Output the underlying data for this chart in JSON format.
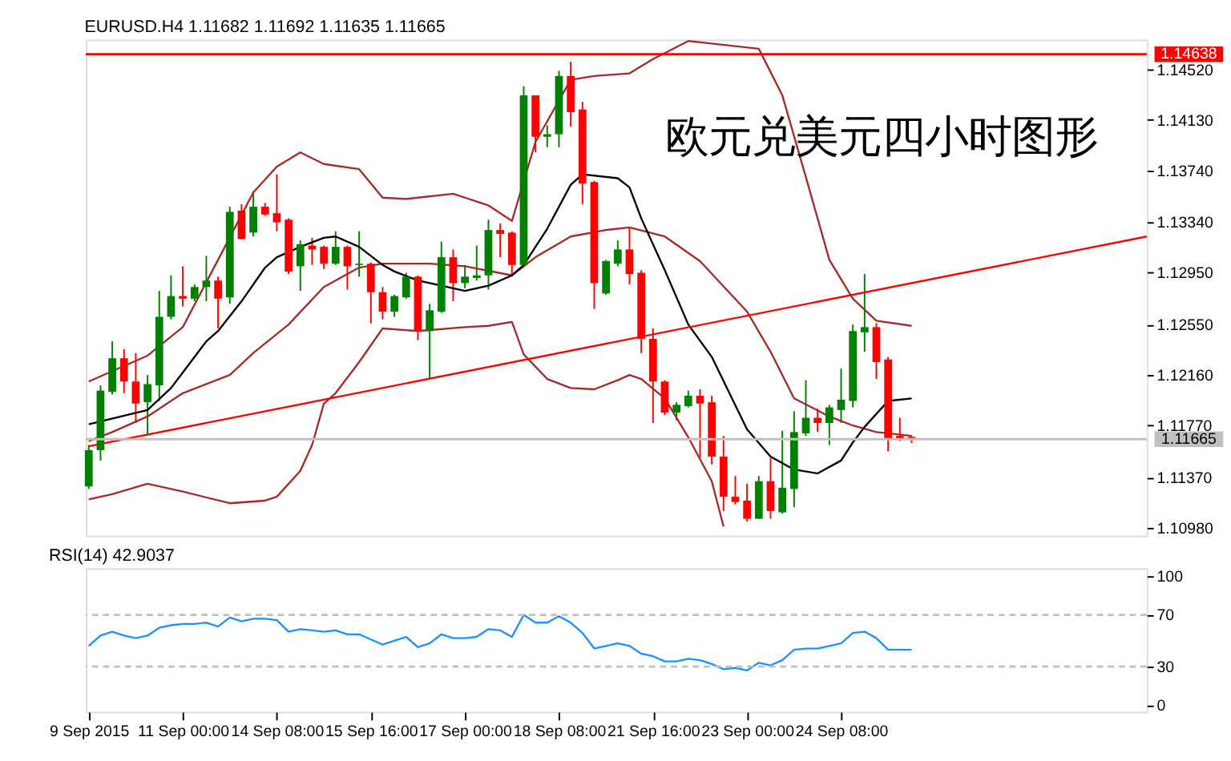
{
  "chart_data": [
    {
      "type": "candlestick",
      "title": "EURUSD.H4  1.11682 1.11692 1.11635 1.11665",
      "annotations": [
        "欧元兑美元四小时图形"
      ],
      "categories": [
        null,
        null,
        null,
        null,
        null,
        null,
        null,
        null,
        null,
        null,
        null,
        null,
        null,
        null,
        null,
        null,
        null,
        null,
        null,
        null,
        null,
        null,
        null,
        null,
        null,
        null,
        null,
        null,
        null,
        null,
        null,
        null,
        null,
        null,
        null,
        null,
        null,
        null,
        null,
        null,
        null,
        null,
        null,
        null,
        null,
        null,
        null,
        null,
        null,
        null,
        null,
        null,
        null,
        null,
        null,
        null,
        null,
        null,
        null,
        null,
        null,
        null,
        null,
        null,
        null,
        null,
        null,
        null,
        null,
        null,
        null,
        null,
        null,
        null,
        null,
        null,
        null,
        null,
        null,
        null,
        null,
        null,
        null,
        null,
        null,
        null,
        null,
        null,
        null,
        null,
        null
      ],
      "ohlc": [
        [
          1.113,
          1.1162,
          1.1128,
          1.1158
        ],
        [
          1.1158,
          1.1208,
          1.115,
          1.1204
        ],
        [
          1.1203,
          1.1242,
          1.1201,
          1.1229
        ],
        [
          1.1229,
          1.1236,
          1.1202,
          1.1211
        ],
        [
          1.1211,
          1.1233,
          1.1179,
          1.1194
        ],
        [
          1.1195,
          1.1216,
          1.117,
          1.1209
        ],
        [
          1.1208,
          1.1281,
          1.1196,
          1.1261
        ],
        [
          1.1261,
          1.1293,
          1.1259,
          1.1277
        ],
        [
          1.1277,
          1.13,
          1.1269,
          1.1275
        ],
        [
          1.1275,
          1.1286,
          1.1273,
          1.1284
        ],
        [
          1.1284,
          1.1308,
          1.1273,
          1.1289
        ],
        [
          1.1289,
          1.1292,
          1.1252,
          1.1275
        ],
        [
          1.1276,
          1.1346,
          1.1271,
          1.1342
        ],
        [
          1.1343,
          1.1348,
          1.1321,
          1.1321
        ],
        [
          1.1326,
          1.1358,
          1.1323,
          1.1346
        ],
        [
          1.1346,
          1.1349,
          1.1339,
          1.134
        ],
        [
          1.1341,
          1.1371,
          1.1327,
          1.1334
        ],
        [
          1.1336,
          1.1337,
          1.1294,
          1.1296
        ],
        [
          1.13,
          1.132,
          1.1281,
          1.1317
        ],
        [
          1.1316,
          1.1322,
          1.1301,
          1.1313
        ],
        [
          1.1315,
          1.1316,
          1.1298,
          1.1302
        ],
        [
          1.1302,
          1.1327,
          1.1301,
          1.1315
        ],
        [
          1.1315,
          1.1316,
          1.1282,
          1.13
        ],
        [
          1.1301,
          1.1327,
          1.1292,
          1.1302
        ],
        [
          1.1302,
          1.1303,
          1.1256,
          1.128
        ],
        [
          1.128,
          1.1284,
          1.1259,
          1.1265
        ],
        [
          1.1265,
          1.1278,
          1.1261,
          1.1277
        ],
        [
          1.1276,
          1.1295,
          1.1275,
          1.1292
        ],
        [
          1.1292,
          1.1293,
          1.1243,
          1.125
        ],
        [
          1.125,
          1.1271,
          1.1213,
          1.1266
        ],
        [
          1.1265,
          1.1319,
          1.1264,
          1.1307
        ],
        [
          1.1307,
          1.1313,
          1.1273,
          1.1287
        ],
        [
          1.1287,
          1.1301,
          1.1283,
          1.1292
        ],
        [
          1.1291,
          1.1316,
          1.1289,
          1.1293
        ],
        [
          1.1293,
          1.1336,
          1.1282,
          1.1328
        ],
        [
          1.1328,
          1.1333,
          1.1307,
          1.1325
        ],
        [
          1.1326,
          1.1327,
          1.1292,
          1.1301
        ],
        [
          1.1301,
          1.1439,
          1.13,
          1.1432
        ],
        [
          1.1432,
          1.1432,
          1.1388,
          1.14
        ],
        [
          1.14,
          1.1409,
          1.1392,
          1.1402
        ],
        [
          1.1402,
          1.1451,
          1.1392,
          1.1447
        ],
        [
          1.1447,
          1.1458,
          1.1408,
          1.1419
        ],
        [
          1.1421,
          1.1427,
          1.1348,
          1.1364
        ],
        [
          1.1365,
          1.1366,
          1.1267,
          1.1287
        ],
        [
          1.1279,
          1.1305,
          1.1278,
          1.1304
        ],
        [
          1.1302,
          1.132,
          1.13,
          1.1313
        ],
        [
          1.1313,
          1.133,
          1.1286,
          1.1294
        ],
        [
          1.1295,
          1.1297,
          1.1233,
          1.1244
        ],
        [
          1.1244,
          1.1252,
          1.1179,
          1.1211
        ],
        [
          1.1211,
          1.1212,
          1.1185,
          1.1187
        ],
        [
          1.1187,
          1.1195,
          1.1181,
          1.1193
        ],
        [
          1.1192,
          1.1204,
          1.1191,
          1.12
        ],
        [
          1.12,
          1.1205,
          1.1152,
          1.1194
        ],
        [
          1.1195,
          1.12,
          1.1147,
          1.1153
        ],
        [
          1.1153,
          1.1169,
          1.1111,
          1.1122
        ],
        [
          1.1122,
          1.1138,
          1.1116,
          1.1118
        ],
        [
          1.1119,
          1.1132,
          1.1103,
          1.1105
        ],
        [
          1.1105,
          1.1138,
          1.1105,
          1.1134
        ],
        [
          1.1134,
          1.1152,
          1.1105,
          1.1111
        ],
        [
          1.111,
          1.1173,
          1.1109,
          1.1129
        ],
        [
          1.1128,
          1.1188,
          1.1114,
          1.1172
        ],
        [
          1.1171,
          1.1212,
          1.1169,
          1.1183
        ],
        [
          1.1183,
          1.119,
          1.1172,
          1.1179
        ],
        [
          1.1179,
          1.1193,
          1.1162,
          1.1191
        ],
        [
          1.1189,
          1.1221,
          1.1179,
          1.1197
        ],
        [
          1.1196,
          1.1255,
          1.1191,
          1.125
        ],
        [
          1.1249,
          1.1294,
          1.1234,
          1.1253
        ],
        [
          1.1253,
          1.1256,
          1.1213,
          1.1226
        ],
        [
          1.1228,
          1.123,
          1.1157,
          1.1167
        ],
        [
          1.1169,
          1.1183,
          1.1165,
          1.1167
        ],
        [
          1.11682,
          1.11692,
          1.11635,
          1.11665
        ],
        null,
        null,
        null,
        null,
        null,
        null,
        null,
        null,
        null,
        null,
        null,
        null,
        null,
        null,
        null,
        null,
        null,
        null,
        null,
        null
      ],
      "colors": [
        "#008000",
        "#008000",
        "#008000",
        "#ff0000",
        "#ff0000",
        "#008000",
        "#008000",
        "#008000",
        "#ff0000",
        "#008000",
        "#008000",
        "#ff0000",
        "#008000",
        "#ff0000",
        "#008000",
        "#ff0000",
        "#ff0000",
        "#ff0000",
        "#008000",
        "#ff0000",
        "#ff0000",
        "#008000",
        "#ff0000",
        "#008000",
        "#ff0000",
        "#ff0000",
        "#008000",
        "#008000",
        "#ff0000",
        "#008000",
        "#008000",
        "#ff0000",
        "#008000",
        "#008000",
        "#008000",
        "#ff0000",
        "#ff0000",
        "#008000",
        "#ff0000",
        "#008000",
        "#008000",
        "#ff0000",
        "#ff0000",
        "#ff0000",
        "#008000",
        "#008000",
        "#ff0000",
        "#ff0000",
        "#ff0000",
        "#ff0000",
        "#008000",
        "#008000",
        "#ff0000",
        "#ff0000",
        "#ff0000",
        "#ff0000",
        "#ff0000",
        "#008000",
        "#ff0000",
        "#008000",
        "#008000",
        "#008000",
        "#ff0000",
        "#008000",
        "#008000",
        "#008000",
        "#008000",
        "#ff0000",
        "#ff0000",
        "#ff0000",
        "#ff0000",
        null,
        null,
        null,
        null,
        null,
        null,
        null,
        null,
        null,
        null,
        null,
        null,
        null,
        null,
        null,
        null,
        null,
        null,
        null,
        null
      ],
      "series": [
        {
          "type": "line",
          "color": "#a52a2a",
          "values": [
            1.1211,
            null,
            null,
            null,
            null,
            1.1231,
            null,
            null,
            1.1253,
            null,
            null,
            1.1305,
            null,
            null,
            1.1357,
            null,
            1.1377,
            null,
            1.1388,
            null,
            1.1379,
            null,
            null,
            1.1375,
            null,
            1.1353,
            null,
            1.1352,
            null,
            null,
            null,
            1.1356,
            1.1353,
            null,
            1.1347,
            null,
            1.1335,
            null,
            1.1396,
            null,
            1.1428,
            1.1444,
            null,
            1.1447,
            null,
            null,
            1.1449,
            null,
            1.146,
            null,
            null,
            1.1474,
            null,
            null,
            null,
            null,
            null,
            1.1468,
            null,
            1.1432,
            null,
            1.1369,
            null,
            1.1305,
            null,
            1.1275,
            null,
            1.1258,
            null,
            null,
            1.1254,
            null,
            null,
            null,
            null,
            null,
            null,
            null,
            null,
            null,
            null,
            null,
            null,
            null,
            null,
            null,
            null,
            null,
            null,
            null,
            null
          ]
        },
        {
          "type": "line",
          "color": "#a52a2a",
          "values": [
            1.1165,
            null,
            1.1172,
            null,
            null,
            1.1184,
            null,
            null,
            1.1202,
            null,
            null,
            null,
            1.1216,
            null,
            1.1233,
            null,
            null,
            1.1255,
            null,
            null,
            1.1284,
            null,
            null,
            1.1299,
            null,
            1.1302,
            null,
            null,
            null,
            1.1302,
            null,
            null,
            1.13,
            null,
            null,
            null,
            1.1293,
            null,
            1.1307,
            null,
            null,
            1.1323,
            null,
            null,
            1.1328,
            null,
            1.133,
            null,
            null,
            1.1323,
            null,
            null,
            1.1304,
            null,
            null,
            null,
            1.1265,
            null,
            1.1234,
            null,
            1.1198,
            null,
            null,
            1.1184,
            null,
            1.1177,
            null,
            1.1172,
            null,
            null,
            1.1169,
            null,
            null,
            null,
            null,
            null,
            null,
            null,
            null,
            null,
            null,
            null,
            null,
            null,
            null,
            null,
            null,
            null,
            null,
            null,
            null
          ]
        },
        {
          "type": "line",
          "color": "#a52a2a",
          "values": [
            1.112,
            null,
            1.1124,
            null,
            null,
            1.1132,
            null,
            null,
            1.1126,
            null,
            null,
            null,
            1.1117,
            null,
            null,
            1.1119,
            1.1122,
            null,
            1.1142,
            1.1162,
            1.1194,
            1.1202,
            null,
            1.1226,
            null,
            1.1252,
            null,
            null,
            1.125,
            null,
            null,
            null,
            1.1253,
            null,
            1.1254,
            null,
            1.1257,
            1.1232,
            null,
            1.1213,
            null,
            1.1206,
            null,
            1.1205,
            null,
            1.1212,
            1.1216,
            1.1213,
            null,
            1.1198,
            null,
            1.1168,
            null,
            1.1134,
            1.1099,
            null,
            null,
            null,
            null,
            null,
            null,
            null,
            null,
            null,
            null,
            null,
            null,
            null,
            null,
            null,
            null,
            null,
            null,
            null,
            null,
            null,
            null,
            null,
            null,
            null,
            null,
            null,
            null,
            null,
            null,
            null,
            null,
            null,
            null,
            null,
            null
          ]
        },
        {
          "type": "line",
          "color": "#000000",
          "values": [
            1.1178,
            null,
            null,
            null,
            null,
            1.1189,
            null,
            1.1206,
            1.1218,
            null,
            1.1242,
            1.125,
            null,
            1.1273,
            null,
            1.1299,
            1.1307,
            null,
            1.1315,
            null,
            1.1322,
            1.1323,
            null,
            1.1315,
            null,
            1.1301,
            1.1296,
            null,
            1.1289,
            null,
            1.1285,
            null,
            1.1281,
            null,
            1.1285,
            null,
            1.1293,
            1.1301,
            null,
            1.1329,
            null,
            1.1363,
            1.1371,
            null,
            null,
            1.1368,
            1.1361,
            1.1337,
            null,
            1.1297,
            null,
            1.1255,
            null,
            1.123,
            null,
            null,
            1.1174,
            null,
            1.1153,
            null,
            1.1143,
            null,
            1.114,
            null,
            1.115,
            1.1164,
            1.1176,
            null,
            1.1196,
            null,
            1.1198,
            null,
            null,
            null,
            null,
            null,
            null,
            null,
            null,
            null,
            null,
            null,
            null,
            null,
            null,
            null,
            null,
            null,
            null,
            null,
            null
          ]
        },
        {
          "type": "line",
          "color": "#ff0000",
          "values": [
            1.1161,
            null,
            null,
            null,
            null,
            null,
            null,
            null,
            null,
            null,
            null,
            null,
            null,
            null,
            null,
            null,
            null,
            null,
            null,
            null,
            null,
            null,
            null,
            null,
            null,
            null,
            null,
            null,
            null,
            null,
            null,
            null,
            null,
            null,
            null,
            null,
            null,
            null,
            null,
            null,
            null,
            null,
            null,
            null,
            null,
            null,
            null,
            null,
            null,
            null,
            null,
            null,
            null,
            null,
            null,
            null,
            null,
            null,
            null,
            null,
            null,
            null,
            null,
            null,
            null,
            null,
            null,
            null,
            null,
            null,
            null,
            null,
            null,
            null,
            null,
            null,
            null,
            null,
            null,
            null,
            null,
            null,
            null,
            null,
            null,
            null,
            null,
            null,
            null,
            null,
            1.1323
          ]
        }
      ],
      "ylim": [
        1.1092,
        1.1475
      ],
      "yticks": [
        {
          "value": 1.1098,
          "label": "1.10980"
        },
        {
          "value": 1.1137,
          "label": "1.11370"
        },
        {
          "value": 1.1177,
          "label": "1.11770"
        },
        {
          "value": 1.1216,
          "label": "1.12160"
        },
        {
          "value": 1.1255,
          "label": "1.12550"
        },
        {
          "value": 1.1295,
          "label": "1.12950"
        },
        {
          "value": 1.1334,
          "label": "1.13340"
        },
        {
          "value": 1.1374,
          "label": "1.13740"
        },
        {
          "value": 1.1413,
          "label": "1.14130"
        },
        {
          "value": 1.1452,
          "label": "1.14520"
        }
      ],
      "ref_lines": [
        {
          "axis": "y",
          "value": 1.14638,
          "label": "1.14638",
          "color": "#ff0000"
        },
        {
          "axis": "y",
          "value": 1.11665,
          "label": "1.11665",
          "color": "#c0c0c0"
        }
      ],
      "tick_labels": "y"
    },
    {
      "type": "line",
      "title": "RSI(14) 42.9037",
      "categories": [
        "9 Sep 2015",
        null,
        null,
        null,
        null,
        null,
        null,
        null,
        "11 Sep 00:00",
        null,
        null,
        null,
        null,
        null,
        null,
        null,
        "14 Sep 08:00",
        null,
        null,
        null,
        null,
        null,
        null,
        null,
        "15 Sep 16:00",
        null,
        null,
        null,
        null,
        null,
        null,
        null,
        "17 Sep 00:00",
        null,
        null,
        null,
        null,
        null,
        null,
        null,
        "18 Sep 08:00",
        null,
        null,
        null,
        null,
        null,
        null,
        null,
        "21 Sep 16:00",
        null,
        null,
        null,
        null,
        null,
        null,
        null,
        "23 Sep 00:00",
        null,
        null,
        null,
        null,
        null,
        null,
        null,
        "24 Sep 08:00",
        null,
        null,
        null,
        null,
        null,
        null,
        null,
        null,
        null,
        null,
        null,
        null,
        null,
        null,
        null,
        null,
        null,
        null,
        null,
        null,
        null,
        null,
        null,
        null,
        null,
        null
      ],
      "series": [
        {
          "color": "#1e90ff",
          "values": [
            46,
            54,
            57,
            54,
            52,
            54,
            60,
            62,
            63,
            63,
            64,
            61,
            68,
            65,
            67,
            67,
            66,
            57,
            59,
            58,
            57,
            58,
            55,
            55,
            51,
            47,
            50,
            53,
            45,
            48,
            55,
            52,
            52,
            53,
            59,
            58,
            53,
            70,
            64,
            64,
            69,
            64,
            56,
            44,
            46,
            48,
            46,
            40,
            38,
            34,
            34,
            36,
            35,
            32,
            28,
            29,
            27,
            33,
            31,
            35,
            43,
            44,
            44,
            46,
            48,
            56,
            57,
            52,
            43,
            43,
            43,
            null,
            null,
            null,
            null,
            null,
            null,
            null,
            null,
            null,
            null,
            null,
            null,
            null,
            null,
            null,
            null,
            null,
            null,
            null,
            null
          ]
        }
      ],
      "ylim": [
        -5,
        106
      ],
      "yticks": [
        0,
        30,
        70,
        100
      ],
      "ref_lines": [
        {
          "axis": "y",
          "value": 70,
          "color": "#c0c0c0",
          "line_style": "dashed"
        },
        {
          "axis": "y",
          "value": 30,
          "color": "#c0c0c0",
          "line_style": "dashed"
        }
      ]
    }
  ]
}
